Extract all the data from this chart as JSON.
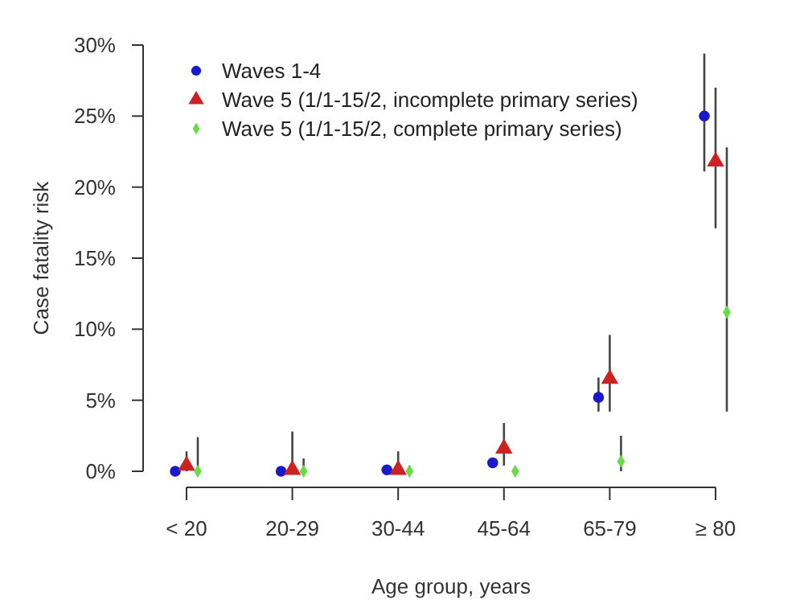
{
  "chart_data": {
    "type": "scatter",
    "xlabel": "Age group, years",
    "ylabel": "Case fatality risk",
    "categories": [
      "< 20",
      "20-29",
      "30-44",
      "45-64",
      "65-79",
      "≥ 80"
    ],
    "ylim": [
      0,
      30
    ],
    "yticks": [
      {
        "value": 0,
        "label": "0%"
      },
      {
        "value": 5,
        "label": "5%"
      },
      {
        "value": 10,
        "label": "10%"
      },
      {
        "value": 15,
        "label": "15%"
      },
      {
        "value": 20,
        "label": "20%"
      },
      {
        "value": 25,
        "label": "25%"
      },
      {
        "value": 30,
        "label": "30%"
      }
    ],
    "grid": false,
    "legend": "top left",
    "series": [
      {
        "name": "Waves 1-4",
        "color": "#1a1acc",
        "marker": "circle",
        "values": [
          0,
          0,
          0.1,
          0.6,
          5.2,
          25.0
        ],
        "errors": [
          null,
          null,
          null,
          null,
          [
            4.2,
            6.6
          ],
          [
            21.1,
            29.4
          ]
        ]
      },
      {
        "name": "Wave 5 (1/1-15/2, incomplete primary series)",
        "color": "#cc2222",
        "marker": "triangle",
        "values": [
          0.4,
          0.1,
          0.1,
          1.6,
          6.5,
          21.8
        ],
        "errors": [
          [
            0,
            1.4
          ],
          [
            0,
            2.8
          ],
          [
            0,
            1.4
          ],
          [
            0.4,
            3.4
          ],
          [
            4.2,
            9.6
          ],
          [
            17.1,
            27.0
          ]
        ]
      },
      {
        "name": "Wave 5 (1/1-15/2, complete primary series)",
        "color": "#66dd44",
        "marker": "diamond",
        "values": [
          0,
          0,
          0,
          0,
          0.7,
          11.2
        ],
        "errors": [
          [
            0,
            2.4
          ],
          [
            0,
            0.9
          ],
          [
            0,
            0.4
          ],
          null,
          [
            0,
            2.5
          ],
          [
            4.2,
            22.8
          ]
        ]
      }
    ]
  }
}
